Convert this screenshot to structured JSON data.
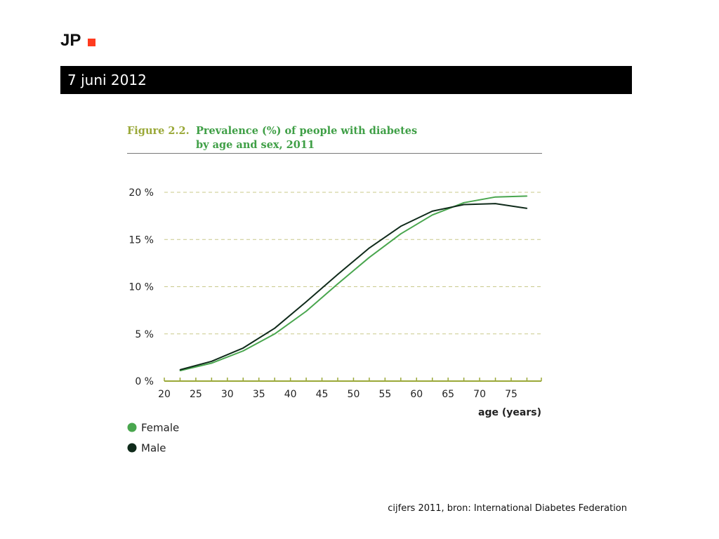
{
  "header": {
    "logo_text": "JP",
    "logo_accent_color": "#ff3b1f",
    "date": "7 juni 2012"
  },
  "chart_data": {
    "type": "line",
    "title_label": "Figure 2.2.",
    "title_line1": "Prevalence (%) of people with diabetes",
    "title_line2": "by age and sex, 2011",
    "xlabel": "age (years)",
    "ylabel": "",
    "xlim": [
      20,
      78
    ],
    "ylim": [
      0,
      20
    ],
    "x_ticks": [
      20,
      25,
      30,
      35,
      40,
      45,
      50,
      55,
      60,
      65,
      70,
      75
    ],
    "y_ticks": [
      "0 %",
      "5 %",
      "10 %",
      "15 %",
      "20 %"
    ],
    "y_tick_values": [
      0,
      5,
      10,
      15,
      20
    ],
    "grid": "horizontal-dashed",
    "legend_placement": "bottom-left",
    "x": [
      22.5,
      27.5,
      32.5,
      37.5,
      42.5,
      47.5,
      52.5,
      57.5,
      62.5,
      67.5,
      72.5,
      77.5
    ],
    "series": [
      {
        "name": "Female",
        "color": "#49a64e",
        "values": [
          1.1,
          1.9,
          3.2,
          5.0,
          7.4,
          10.3,
          13.1,
          15.6,
          17.6,
          18.9,
          19.5,
          19.6
        ]
      },
      {
        "name": "Male",
        "color": "#0f2a1a",
        "values": [
          1.2,
          2.1,
          3.5,
          5.6,
          8.4,
          11.3,
          14.1,
          16.4,
          18.0,
          18.7,
          18.8,
          18.3
        ]
      }
    ]
  },
  "footer": {
    "source": "cijfers 2011, bron: International Diabetes Federation"
  }
}
